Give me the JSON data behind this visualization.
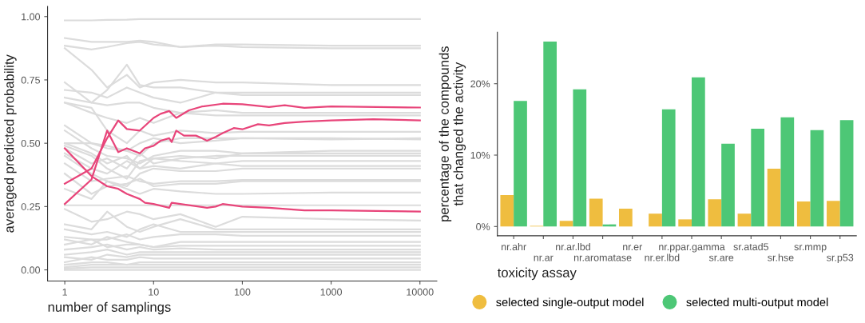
{
  "chart_data": [
    {
      "type": "line",
      "xlabel": "number of samplings",
      "ylabel": "averaged predicted probability",
      "log": "x",
      "xlim": [
        0.64,
        15500
      ],
      "xticks": [
        1,
        10,
        100,
        1000,
        10000
      ],
      "ylim": [
        -0.044,
        1.04
      ],
      "yticks": [
        {
          "value": 0,
          "label": "0.00"
        },
        {
          "value": 0.25,
          "label": "0.25"
        },
        {
          "value": 0.5,
          "label": "0.50"
        },
        {
          "value": 0.75,
          "label": "0.75"
        },
        {
          "value": 1,
          "label": "1.00"
        }
      ],
      "grid": false,
      "legend": false,
      "x": [
        1,
        2,
        3,
        5,
        7,
        10,
        20,
        50,
        100,
        1000,
        10000
      ],
      "series": [
        {
          "color": "#dcdcdc",
          "values": [
            0.985,
            0.985,
            0.987,
            0.988,
            0.99,
            0.99,
            0.99,
            0.99,
            0.99,
            0.99,
            0.99
          ]
        },
        {
          "color": "#dcdcdc",
          "values": [
            0.915,
            0.9,
            0.9,
            0.9,
            0.905,
            0.9,
            0.88,
            0.89,
            0.89,
            0.885,
            0.885
          ]
        },
        {
          "color": "#dcdcdc",
          "values": [
            0.885,
            0.87,
            0.88,
            0.895,
            0.9,
            0.89,
            0.88,
            0.885,
            0.88,
            0.875,
            0.875
          ]
        },
        {
          "color": "#dcdcdc",
          "values": [
            0.875,
            0.79,
            0.72,
            0.77,
            0.72,
            0.74,
            0.75,
            0.74,
            0.74,
            0.73,
            0.73
          ]
        },
        {
          "color": "#dcdcdc",
          "values": [
            0.74,
            0.66,
            0.71,
            0.81,
            0.73,
            0.72,
            0.72,
            0.7,
            0.7,
            0.7,
            0.7
          ]
        },
        {
          "color": "#dcdcdc",
          "values": [
            0.71,
            0.7,
            0.68,
            0.72,
            0.7,
            0.68,
            0.66,
            0.7,
            0.69,
            0.69,
            0.69
          ]
        },
        {
          "color": "#dcdcdc",
          "values": [
            0.68,
            0.66,
            0.65,
            0.66,
            0.66,
            0.64,
            0.62,
            0.63,
            0.62,
            0.62,
            0.62
          ]
        },
        {
          "color": "#dcdcdc",
          "values": [
            0.66,
            0.62,
            0.6,
            0.58,
            0.6,
            0.58,
            0.62,
            0.61,
            0.61,
            0.61,
            0.61
          ]
        },
        {
          "color": "#dcdcdc",
          "values": [
            0.66,
            0.64,
            0.55,
            0.5,
            0.55,
            0.53,
            0.55,
            0.54,
            0.545,
            0.545,
            0.545
          ]
        },
        {
          "color": "#dcdcdc",
          "values": [
            0.57,
            0.5,
            0.49,
            0.47,
            0.45,
            0.5,
            0.52,
            0.52,
            0.52,
            0.52,
            0.515
          ]
        },
        {
          "color": "#dcdcdc",
          "values": [
            0.5,
            0.5,
            0.48,
            0.47,
            0.5,
            0.52,
            0.5,
            0.51,
            0.52,
            0.515,
            0.52
          ]
        },
        {
          "color": "#dcdcdc",
          "values": [
            0.55,
            0.48,
            0.45,
            0.44,
            0.42,
            0.45,
            0.47,
            0.47,
            0.46,
            0.47,
            0.47
          ]
        },
        {
          "color": "#dcdcdc",
          "values": [
            0.49,
            0.45,
            0.4,
            0.36,
            0.43,
            0.44,
            0.45,
            0.44,
            0.46,
            0.46,
            0.46
          ]
        },
        {
          "color": "#dcdcdc",
          "values": [
            0.48,
            0.42,
            0.44,
            0.4,
            0.46,
            0.42,
            0.44,
            0.45,
            0.45,
            0.45,
            0.45
          ]
        },
        {
          "color": "#dcdcdc",
          "values": [
            0.5,
            0.46,
            0.42,
            0.45,
            0.4,
            0.44,
            0.43,
            0.42,
            0.43,
            0.43,
            0.43
          ]
        },
        {
          "color": "#dcdcdc",
          "values": [
            0.46,
            0.4,
            0.38,
            0.43,
            0.4,
            0.41,
            0.4,
            0.42,
            0.41,
            0.41,
            0.41
          ]
        },
        {
          "color": "#dcdcdc",
          "values": [
            0.45,
            0.38,
            0.35,
            0.33,
            0.38,
            0.4,
            0.39,
            0.39,
            0.4,
            0.4,
            0.4
          ]
        },
        {
          "color": "#dcdcdc",
          "values": [
            0.42,
            0.35,
            0.36,
            0.37,
            0.35,
            0.34,
            0.35,
            0.35,
            0.355,
            0.355,
            0.355
          ]
        },
        {
          "color": "#dcdcdc",
          "values": [
            0.38,
            0.3,
            0.33,
            0.34,
            0.36,
            0.33,
            0.34,
            0.34,
            0.35,
            0.35,
            0.35
          ]
        },
        {
          "color": "#dcdcdc",
          "values": [
            0.32,
            0.28,
            0.35,
            0.32,
            0.3,
            0.32,
            0.31,
            0.3,
            0.3,
            0.305,
            0.305
          ]
        },
        {
          "color": "#dcdcdc",
          "values": [
            0.255,
            0.255,
            0.255,
            0.255,
            0.255,
            0.255,
            0.255,
            0.255,
            0.255,
            0.255,
            0.255
          ]
        },
        {
          "color": "#dcdcdc",
          "values": [
            0.24,
            0.19,
            0.2,
            0.23,
            0.22,
            0.2,
            0.22,
            0.17,
            0.21,
            0.2,
            0.195
          ]
        },
        {
          "color": "#dcdcdc",
          "values": [
            0.18,
            0.16,
            0.23,
            0.17,
            0.15,
            0.17,
            0.2,
            0.16,
            0.16,
            0.16,
            0.16
          ]
        },
        {
          "color": "#dcdcdc",
          "values": [
            0.16,
            0.14,
            0.15,
            0.13,
            0.16,
            0.18,
            0.15,
            0.15,
            0.15,
            0.15,
            0.15
          ]
        },
        {
          "color": "#dcdcdc",
          "values": [
            0.13,
            0.12,
            0.12,
            0.14,
            0.12,
            0.13,
            0.14,
            0.14,
            0.135,
            0.135,
            0.135
          ]
        },
        {
          "color": "#dcdcdc",
          "values": [
            0.12,
            0.1,
            0.13,
            0.11,
            0.1,
            0.09,
            0.11,
            0.11,
            0.11,
            0.11,
            0.11
          ]
        },
        {
          "color": "#dcdcdc",
          "values": [
            0.1,
            0.12,
            0.09,
            0.1,
            0.1,
            0.09,
            0.095,
            0.095,
            0.095,
            0.095,
            0.095
          ]
        },
        {
          "color": "#dcdcdc",
          "values": [
            0.08,
            0.09,
            0.1,
            0.08,
            0.09,
            0.08,
            0.085,
            0.08,
            0.08,
            0.08,
            0.08
          ]
        },
        {
          "color": "#dcdcdc",
          "values": [
            0.06,
            0.07,
            0.08,
            0.06,
            0.07,
            0.07,
            0.07,
            0.07,
            0.07,
            0.07,
            0.07
          ]
        },
        {
          "color": "#dcdcdc",
          "values": [
            0.05,
            0.04,
            0.06,
            0.05,
            0.06,
            0.06,
            0.06,
            0.06,
            0.06,
            0.06,
            0.06
          ]
        },
        {
          "color": "#dcdcdc",
          "values": [
            0.03,
            0.05,
            0.04,
            0.04,
            0.05,
            0.045,
            0.045,
            0.045,
            0.045,
            0.045,
            0.045
          ]
        },
        {
          "color": "#dcdcdc",
          "values": [
            0.02,
            0.03,
            0.03,
            0.02,
            0.03,
            0.03,
            0.03,
            0.03,
            0.03,
            0.03,
            0.03
          ]
        },
        {
          "color": "#dcdcdc",
          "values": [
            0.01,
            0.02,
            0.02,
            0.02,
            0.02,
            0.02,
            0.02,
            0.02,
            0.02,
            0.02,
            0.02
          ]
        },
        {
          "color": "#dcdcdc",
          "values": [
            0.005,
            0.01,
            0.01,
            0.01,
            0.01,
            0.01,
            0.01,
            0.01,
            0.01,
            0.01,
            0.01
          ]
        },
        {
          "color": "#dcdcdc",
          "values": [
            0.0,
            0.0,
            0.0,
            0.0,
            0.0,
            0.0,
            0.0,
            0.0,
            0.0,
            0.0,
            0.0
          ]
        },
        {
          "color": "#e8457a",
          "x": [
            1,
            2,
            3,
            4,
            5,
            7,
            10,
            12,
            15,
            18,
            25,
            35,
            60,
            100,
            200,
            300,
            500,
            1000,
            10000
          ],
          "values": [
            0.34,
            0.4,
            0.52,
            0.59,
            0.556,
            0.55,
            0.6,
            0.616,
            0.627,
            0.6,
            0.63,
            0.645,
            0.656,
            0.654,
            0.643,
            0.65,
            0.64,
            0.645,
            0.641
          ]
        },
        {
          "color": "#e8457a",
          "x": [
            1,
            2,
            3,
            4,
            5,
            7,
            8,
            10,
            12,
            15,
            16,
            18,
            22,
            30,
            35,
            40,
            50,
            60,
            80,
            100,
            150,
            200,
            300,
            500,
            1000,
            3000,
            10000
          ],
          "values": [
            0.26,
            0.357,
            0.55,
            0.465,
            0.48,
            0.46,
            0.48,
            0.49,
            0.51,
            0.52,
            0.505,
            0.55,
            0.53,
            0.53,
            0.52,
            0.51,
            0.525,
            0.54,
            0.56,
            0.555,
            0.575,
            0.57,
            0.58,
            0.585,
            0.59,
            0.595,
            0.59
          ]
        },
        {
          "color": "#e8457a",
          "x": [
            1,
            2,
            3,
            4,
            5,
            7,
            8,
            10,
            15,
            16,
            20,
            40,
            50,
            60,
            100,
            200,
            500,
            1000,
            10000
          ],
          "values": [
            0.48,
            0.37,
            0.33,
            0.32,
            0.3,
            0.28,
            0.265,
            0.26,
            0.245,
            0.265,
            0.26,
            0.245,
            0.25,
            0.26,
            0.25,
            0.245,
            0.235,
            0.235,
            0.23
          ]
        }
      ]
    },
    {
      "type": "bar",
      "xlabel": "toxicity assay",
      "ylabel": "percentage of the compounds\nthat changed the activity",
      "ylim": [
        -1.3,
        27.2
      ],
      "yticks": [
        {
          "value": 0,
          "label": "0%"
        },
        {
          "value": 10,
          "label": "10%"
        },
        {
          "value": 20,
          "label": "20%"
        }
      ],
      "grid": false,
      "legend": "bottom",
      "marker": "circle",
      "categories": [
        "nr.ahr",
        "nr.ar",
        "nr.ar.lbd",
        "nr.aromatase",
        "nr.er",
        "nr.er.lbd",
        "nr.ppar.gamma",
        "sr.are",
        "sr.atad5",
        "sr.hse",
        "sr.mmp",
        "sr.p53"
      ],
      "series": [
        {
          "name": "selected single-output model",
          "color": "#efbd3f",
          "values": [
            4.4,
            0.1,
            0.8,
            3.9,
            2.5,
            1.8,
            1.0,
            3.8,
            1.8,
            8.1,
            3.5,
            3.6
          ]
        },
        {
          "name": "selected multi-output model",
          "color": "#4dc776",
          "values": [
            17.6,
            25.9,
            19.2,
            0.3,
            0,
            16.4,
            20.9,
            11.6,
            13.7,
            15.3,
            13.5,
            14.9
          ]
        }
      ]
    }
  ]
}
